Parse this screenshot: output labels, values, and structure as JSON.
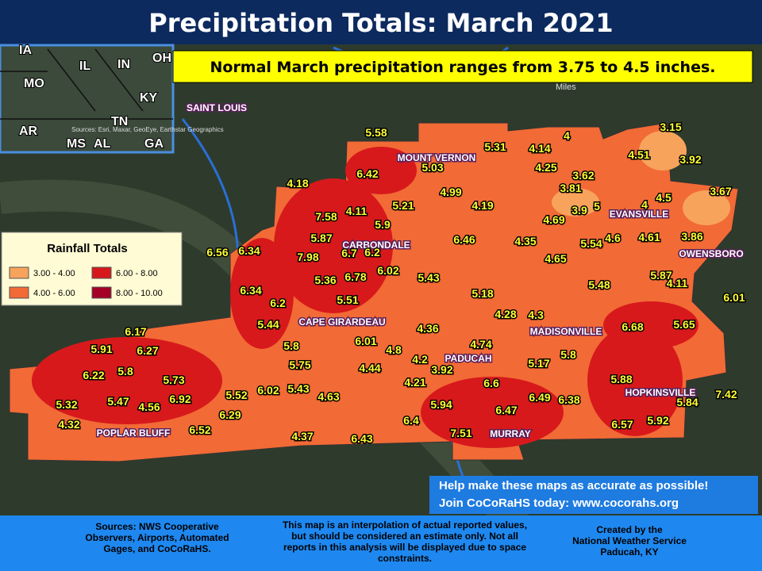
{
  "header": {
    "title": "Precipitation Totals: March 2021",
    "normal_note": "Normal March precipitation ranges from 3.75 to 4.5 inches."
  },
  "inset": {
    "states": [
      "IA",
      "IL",
      "IN",
      "OH",
      "MO",
      "KY",
      "AR",
      "TN",
      "MS",
      "AL",
      "GA"
    ],
    "credit": "Sources: Esri, Maxar, GeoEye, Earthstar Geographics"
  },
  "scale_label": "Miles",
  "legend": {
    "title": "Rainfall Totals",
    "items": [
      {
        "label": "3.00 - 4.00",
        "color": "#f7a35c"
      },
      {
        "label": "6.00 - 8.00",
        "color": "#d7191c"
      },
      {
        "label": "4.00 - 6.00",
        "color": "#f26a35"
      },
      {
        "label": "8.00 - 10.00",
        "color": "#a50026"
      }
    ]
  },
  "cities": [
    "SAINT LOUIS",
    "MOUNT VERNON",
    "CARBONDALE",
    "CAPE GIRARDEAU",
    "PADUCAH",
    "MADISONVILLE",
    "HOPKINSVILLE",
    "EVANSVILLE",
    "OWENSBORO",
    "POPLAR BLUFF",
    "MURRAY"
  ],
  "stations": [
    5.58,
    5.31,
    4.14,
    4,
    3.15,
    4.51,
    3.92,
    5.03,
    4.25,
    3.62,
    6.42,
    4.18,
    3.81,
    4.99,
    5.21,
    4.19,
    3.67,
    4.5,
    4,
    7.58,
    4.11,
    3.9,
    5,
    4.69,
    5.9,
    5.87,
    6.46,
    4.35,
    5.54,
    4.6,
    4.61,
    3.86,
    6.56,
    6.34,
    7.98,
    6.7,
    6.2,
    4.65,
    6.02,
    6.78,
    5.36,
    5.43,
    5.87,
    5.48,
    4.11,
    6.34,
    5.51,
    5.18,
    6.01,
    6.2,
    4.28,
    4.3,
    5.44,
    5.65,
    6.68,
    6.17,
    4.36,
    6.01,
    5.8,
    5.91,
    6.27,
    4.74,
    4.8,
    5.8,
    4.2,
    3.92,
    5.75,
    5.8,
    6.22,
    4.44,
    5.17,
    5.73,
    4.21,
    6.6,
    5.88,
    5.32,
    5.47,
    6.92,
    5.52,
    6.02,
    5.43,
    4.63,
    4.56,
    6.49,
    6.38,
    7.42,
    5.84,
    5.94,
    6.47,
    6.29,
    4.32,
    6.52,
    6.4,
    6.57,
    5.92,
    7.51,
    4.37,
    6.43
  ],
  "help": {
    "line1": "Help make these maps as accurate as possible!",
    "line2": "Join CoCoRaHS today: www.cocorahs.org"
  },
  "footer": {
    "sources": [
      "Sources: NWS Cooperative",
      "Observers, Airports, Automated",
      "Gages, and CoCoRaHS."
    ],
    "disclaimer": [
      "This map is an interpolation of actual reported values,",
      "but should be considered an estimate only. Not all",
      "reports in this analysis will be displayed due to space",
      "constraints."
    ],
    "credit": [
      "Created by the",
      "National Weather Service",
      "Paducah, KY"
    ]
  }
}
